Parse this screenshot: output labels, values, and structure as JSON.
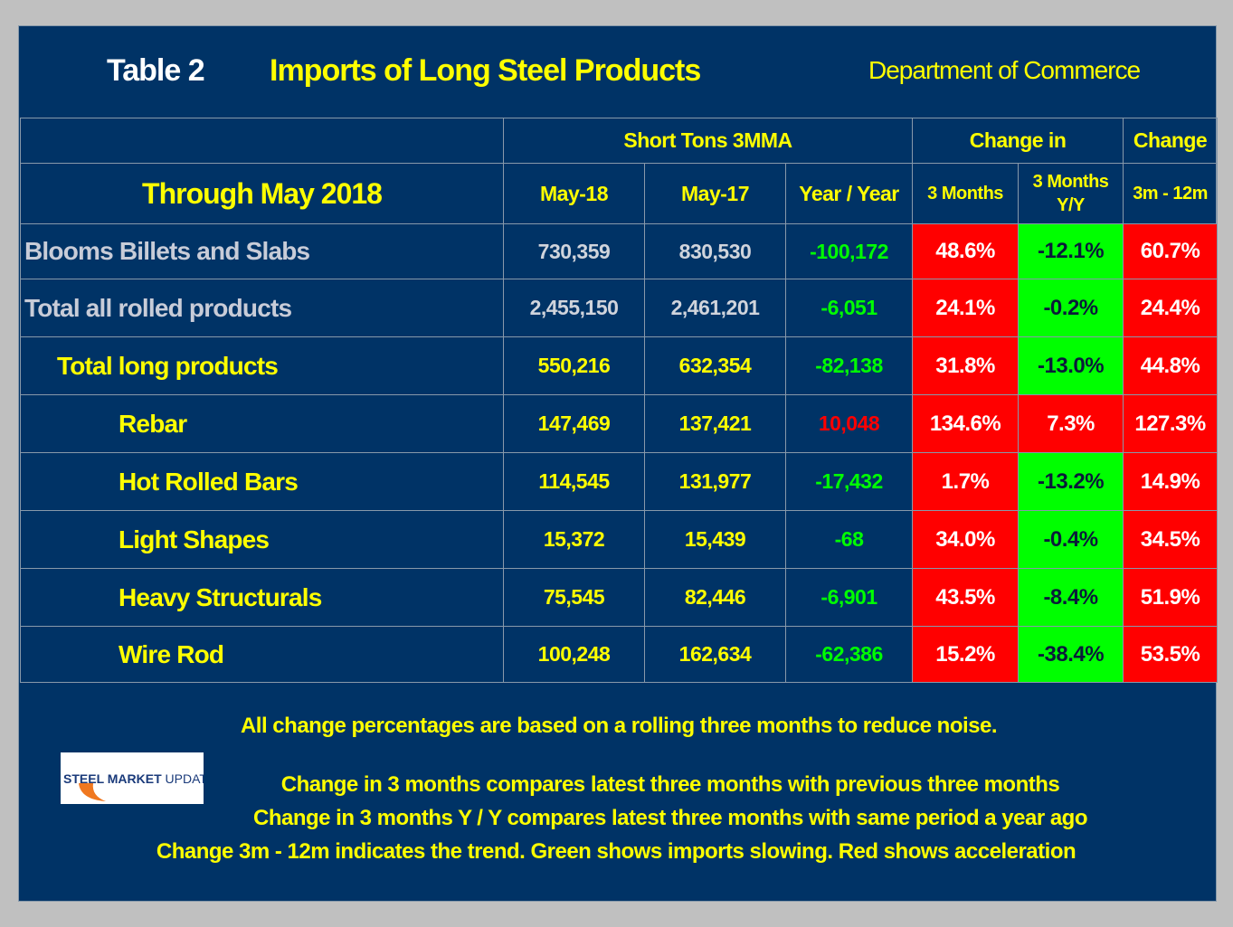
{
  "header": {
    "table_label": "Table 2",
    "title": "Imports of Long Steel Products",
    "source": "Department of Commerce"
  },
  "table": {
    "group_headers": [
      "Short Tons 3MMA",
      "Change in",
      "Change"
    ],
    "period": "Through May 2018",
    "columns": [
      "May-18",
      "May-17",
      "Year / Year",
      "3 Months",
      "3 Months Y/Y",
      "3m - 12m"
    ],
    "rows": [
      {
        "label": "Blooms Billets and Slabs",
        "values": [
          "730,359",
          "830,530",
          "-100,172",
          "48.6%",
          "-12.1%",
          "60.7%"
        ],
        "yoy_color": "#00ff00",
        "fills": [
          "#ff0000",
          "#00ff00",
          "#ff0000"
        ]
      },
      {
        "label": "Total all rolled products",
        "values": [
          "2,455,150",
          "2,461,201",
          "-6,051",
          "24.1%",
          "-0.2%",
          "24.4%"
        ],
        "yoy_color": "#00ff00",
        "fills": [
          "#ff0000",
          "#00ff00",
          "#ff0000"
        ]
      },
      {
        "label": "Total long products",
        "values": [
          "550,216",
          "632,354",
          "-82,138",
          "31.8%",
          "-13.0%",
          "44.8%"
        ],
        "yoy_color": "#00ff00",
        "fills": [
          "#ff0000",
          "#00ff00",
          "#ff0000"
        ]
      },
      {
        "label": "Rebar",
        "values": [
          "147,469",
          "137,421",
          "10,048",
          "134.6%",
          "7.3%",
          "127.3%"
        ],
        "yoy_color": "#ff0000",
        "fills": [
          "#ff0000",
          "#ff0000",
          "#ff0000"
        ]
      },
      {
        "label": "Hot Rolled Bars",
        "values": [
          "114,545",
          "131,977",
          "-17,432",
          "1.7%",
          "-13.2%",
          "14.9%"
        ],
        "yoy_color": "#00ff00",
        "fills": [
          "#ff0000",
          "#00ff00",
          "#ff0000"
        ]
      },
      {
        "label": "Light Shapes",
        "values": [
          "15,372",
          "15,439",
          "-68",
          "34.0%",
          "-0.4%",
          "34.5%"
        ],
        "yoy_color": "#00ff00",
        "fills": [
          "#ff0000",
          "#00ff00",
          "#ff0000"
        ]
      },
      {
        "label": "Heavy Structurals",
        "values": [
          "75,545",
          "82,446",
          "-6,901",
          "43.5%",
          "-8.4%",
          "51.9%"
        ],
        "yoy_color": "#00ff00",
        "fills": [
          "#ff0000",
          "#00ff00",
          "#ff0000"
        ]
      },
      {
        "label": "Wire Rod",
        "values": [
          "100,248",
          "162,634",
          "-62,386",
          "15.2%",
          "-38.4%",
          "53.5%"
        ],
        "yoy_color": "#00ff00",
        "fills": [
          "#ff0000",
          "#00ff00",
          "#ff0000"
        ]
      }
    ]
  },
  "footer": {
    "notes": [
      "All change percentages are based on a rolling three months to reduce noise.",
      "Change in 3 months compares latest three months with previous three months",
      "Change in 3 months  Y / Y compares latest three months with same period a year ago",
      "Change 3m - 12m indicates the trend. Green shows imports slowing. Red shows acceleration"
    ],
    "logo": {
      "bold": "STEEL MARKET",
      "light": "UPDATE"
    }
  }
}
